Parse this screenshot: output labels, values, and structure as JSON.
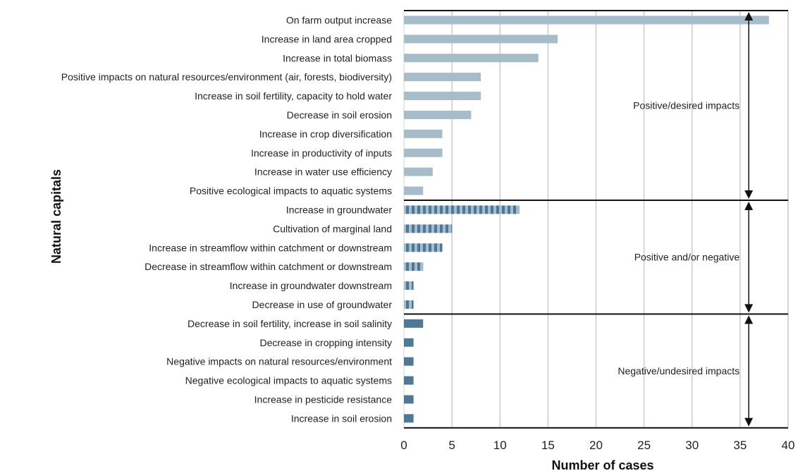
{
  "chart_data": {
    "type": "bar",
    "orientation": "horizontal",
    "xlabel": "Number of cases",
    "ylabel": "Natural capitals",
    "xlim": [
      0,
      40
    ],
    "x_ticks": [
      0,
      5,
      10,
      15,
      20,
      25,
      30,
      35,
      40
    ],
    "grid": "vertical",
    "colors": {
      "positive": "#a7bccb",
      "mixed": "#4e7896",
      "mixed_stripe": "#a7bccb",
      "negative": "#4e7896"
    },
    "groups": [
      {
        "key": "positive",
        "label": "Positive/desired impacts",
        "style": "solid-light",
        "items": [
          {
            "label": "On farm output increase",
            "value": 38
          },
          {
            "label": "Increase in land area cropped",
            "value": 16
          },
          {
            "label": "Increase in total biomass",
            "value": 14
          },
          {
            "label": "Positive impacts on natural resources/environment (air, forests, biodiversity)",
            "value": 8
          },
          {
            "label": "Increase in soil fertility, capacity to hold water",
            "value": 8
          },
          {
            "label": "Decrease in soil erosion",
            "value": 7
          },
          {
            "label": "Increase in crop diversification",
            "value": 4
          },
          {
            "label": "Increase in productivity of inputs",
            "value": 4
          },
          {
            "label": "Increase in water use efficiency",
            "value": 3
          },
          {
            "label": "Positive ecological impacts to aquatic systems",
            "value": 2
          }
        ]
      },
      {
        "key": "mixed",
        "label": "Positive and/or negative",
        "style": "striped",
        "items": [
          {
            "label": "Increase in groundwater",
            "value": 12
          },
          {
            "label": "Cultivation of marginal land",
            "value": 5
          },
          {
            "label": "Increase in streamflow within catchment or downstream",
            "value": 4
          },
          {
            "label": "Decrease in streamflow within catchment or downstream",
            "value": 2
          },
          {
            "label": "Increase in groundwater downstream",
            "value": 1
          },
          {
            "label": "Decrease in use of groundwater",
            "value": 1
          }
        ]
      },
      {
        "key": "negative",
        "label": "Negative/undesired impacts",
        "style": "solid-dark",
        "items": [
          {
            "label": "Decrease in soil fertility, increase in soil salinity",
            "value": 2
          },
          {
            "label": "Decrease in cropping intensity",
            "value": 1
          },
          {
            "label": "Negative impacts on natural resources/environment",
            "value": 1
          },
          {
            "label": "Negative ecological impacts to aquatic systems",
            "value": 1
          },
          {
            "label": "Increase in pesticide resistance",
            "value": 1
          },
          {
            "label": "Increase in soil erosion",
            "value": 1
          }
        ]
      }
    ]
  }
}
